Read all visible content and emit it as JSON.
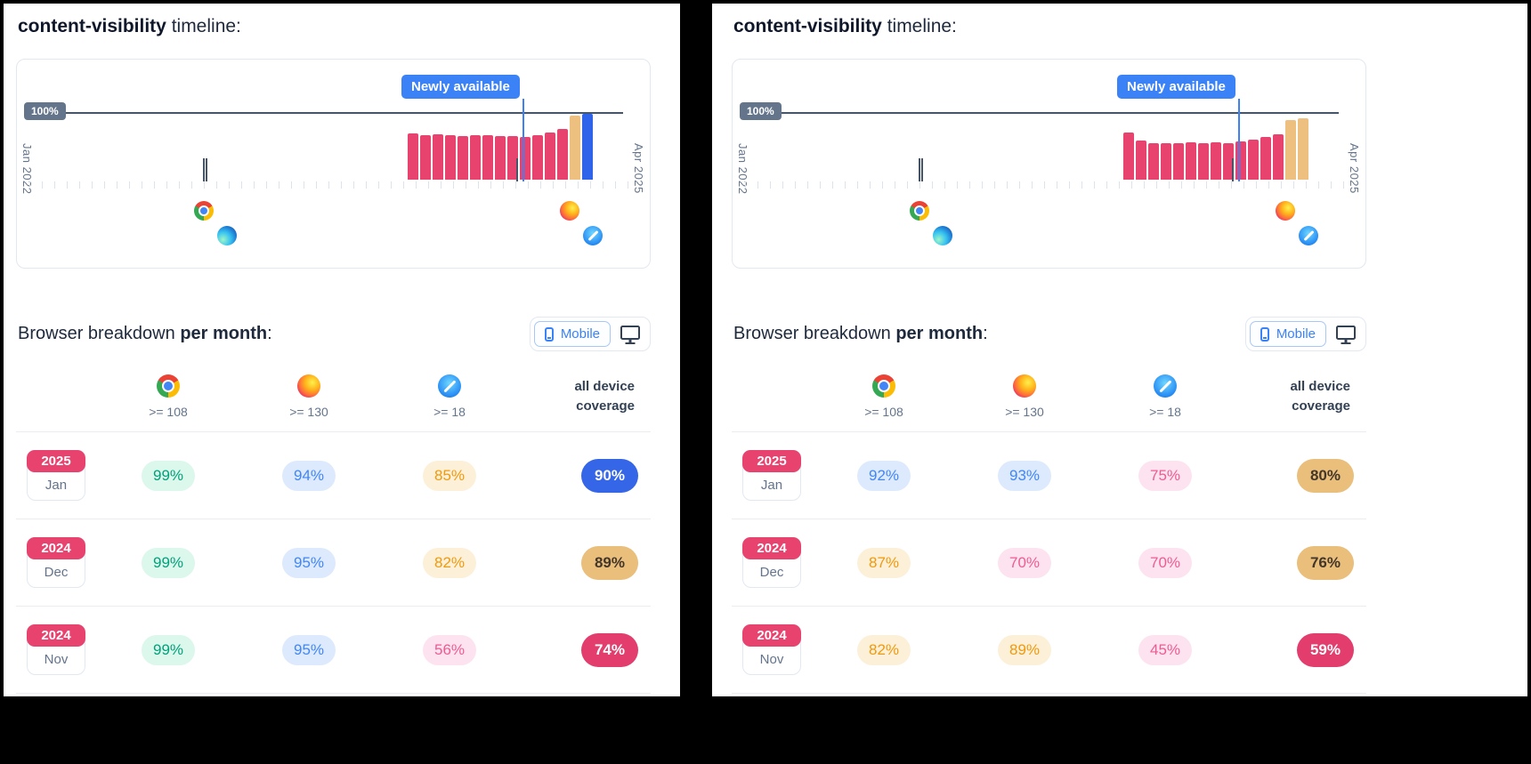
{
  "colors": {
    "annotation_blue": "#3b82f6",
    "bar_pink": "#e8436e",
    "bar_tan": "#eec07f",
    "bar_blue": "#2f63e9",
    "axis_badge_gray": "#64748b",
    "pill_green_text": "#00a17a",
    "pill_blue_text": "#4186f5",
    "pill_orange_text": "#f0990b",
    "pill_pink_text": "#ee5b92",
    "coverage_blue_bg": "#3566e8",
    "coverage_tan_bg": "#eabe7b",
    "coverage_pink_bg": "#e23d6d",
    "year_badge_pink": "#e8436e"
  },
  "panels": [
    {
      "variant": "desktop",
      "title": {
        "code": "content-visibility",
        "rest": " timeline:"
      },
      "timeline": {
        "y_top_label": "100%",
        "x_start_label": "Jan 2022",
        "x_end_label": "Apr 2025",
        "annotation": "Newly available",
        "markers": [
          {
            "icons": [
              "chrome-icon",
              "edge-icon"
            ]
          },
          {
            "icons": [
              "firefox-icon",
              "safari-icon"
            ]
          }
        ],
        "bars": [
          {
            "v": 67,
            "c": "pink"
          },
          {
            "v": 64,
            "c": "pink"
          },
          {
            "v": 65,
            "c": "pink"
          },
          {
            "v": 64,
            "c": "pink"
          },
          {
            "v": 63,
            "c": "pink"
          },
          {
            "v": 64,
            "c": "pink"
          },
          {
            "v": 64,
            "c": "pink"
          },
          {
            "v": 63,
            "c": "pink"
          },
          {
            "v": 63,
            "c": "pink"
          },
          {
            "v": 62,
            "c": "pink"
          },
          {
            "v": 64,
            "c": "pink"
          },
          {
            "v": 68,
            "c": "pink"
          },
          {
            "v": 73,
            "c": "pink"
          },
          {
            "v": 92,
            "c": "tan"
          },
          {
            "v": 95,
            "c": "blue"
          }
        ]
      },
      "breakdown": {
        "prefix": "Browser breakdown ",
        "bold": "per month",
        "suffix": ":"
      },
      "toggle": {
        "selected_label": "Mobile"
      },
      "table": {
        "headers": [
          {
            "icon": "chrome-icon",
            "version": ">= 108"
          },
          {
            "icon": "firefox-icon",
            "version": ">= 130"
          },
          {
            "icon": "safari-icon",
            "version": ">= 18"
          }
        ],
        "coverage_header": "all device coverage",
        "rows": [
          {
            "year": "2025",
            "month": "Jan",
            "values": [
              {
                "text": "99%",
                "tone": "green"
              },
              {
                "text": "94%",
                "tone": "blue"
              },
              {
                "text": "85%",
                "tone": "orange"
              }
            ],
            "coverage": {
              "text": "90%",
              "tone": "blue"
            }
          },
          {
            "year": "2024",
            "month": "Dec",
            "values": [
              {
                "text": "99%",
                "tone": "green"
              },
              {
                "text": "95%",
                "tone": "blue"
              },
              {
                "text": "82%",
                "tone": "orange"
              }
            ],
            "coverage": {
              "text": "89%",
              "tone": "tan"
            }
          },
          {
            "year": "2024",
            "month": "Nov",
            "values": [
              {
                "text": "99%",
                "tone": "green"
              },
              {
                "text": "95%",
                "tone": "blue"
              },
              {
                "text": "56%",
                "tone": "pink"
              }
            ],
            "coverage": {
              "text": "74%",
              "tone": "pink"
            }
          }
        ]
      }
    },
    {
      "variant": "mobile",
      "title": {
        "code": "content-visibility",
        "rest": " timeline:"
      },
      "timeline": {
        "y_top_label": "100%",
        "x_start_label": "Jan 2022",
        "x_end_label": "Apr 2025",
        "annotation": "Newly available",
        "markers": [
          {
            "icons": [
              "chrome-icon",
              "edge-icon"
            ]
          },
          {
            "icons": [
              "firefox-icon",
              "safari-icon"
            ]
          }
        ],
        "bars": [
          {
            "v": 68,
            "c": "pink"
          },
          {
            "v": 56,
            "c": "pink"
          },
          {
            "v": 53,
            "c": "pink"
          },
          {
            "v": 52,
            "c": "pink"
          },
          {
            "v": 53,
            "c": "pink"
          },
          {
            "v": 54,
            "c": "pink"
          },
          {
            "v": 53,
            "c": "pink"
          },
          {
            "v": 54,
            "c": "pink"
          },
          {
            "v": 53,
            "c": "pink"
          },
          {
            "v": 55,
            "c": "pink"
          },
          {
            "v": 58,
            "c": "pink"
          },
          {
            "v": 62,
            "c": "pink"
          },
          {
            "v": 66,
            "c": "pink"
          },
          {
            "v": 86,
            "c": "tan"
          },
          {
            "v": 88,
            "c": "tan"
          }
        ]
      },
      "breakdown": {
        "prefix": "Browser breakdown ",
        "bold": "per month",
        "suffix": ":"
      },
      "toggle": {
        "selected_label": "Mobile"
      },
      "table": {
        "headers": [
          {
            "icon": "chrome-icon",
            "version": ">= 108"
          },
          {
            "icon": "firefox-icon",
            "version": ">= 130"
          },
          {
            "icon": "safari-icon",
            "version": ">= 18"
          }
        ],
        "coverage_header": "all device coverage",
        "rows": [
          {
            "year": "2025",
            "month": "Jan",
            "values": [
              {
                "text": "92%",
                "tone": "blue"
              },
              {
                "text": "93%",
                "tone": "blue"
              },
              {
                "text": "75%",
                "tone": "pink"
              }
            ],
            "coverage": {
              "text": "80%",
              "tone": "tan"
            }
          },
          {
            "year": "2024",
            "month": "Dec",
            "values": [
              {
                "text": "87%",
                "tone": "orange"
              },
              {
                "text": "70%",
                "tone": "pink"
              },
              {
                "text": "70%",
                "tone": "pink"
              }
            ],
            "coverage": {
              "text": "76%",
              "tone": "tan"
            }
          },
          {
            "year": "2024",
            "month": "Nov",
            "values": [
              {
                "text": "82%",
                "tone": "orange"
              },
              {
                "text": "89%",
                "tone": "orange"
              },
              {
                "text": "45%",
                "tone": "pink"
              }
            ],
            "coverage": {
              "text": "59%",
              "tone": "pink"
            }
          }
        ]
      }
    }
  ]
}
